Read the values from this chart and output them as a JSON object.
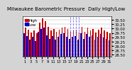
{
  "title": "Milwaukee Barometric Pressure  Daily High/Low",
  "ylabel_right_values": [
    "30.50",
    "30.25",
    "30.00",
    "29.75",
    "29.50",
    "29.25",
    "29.00",
    "28.75",
    "28.50"
  ],
  "ylim": [
    28.4,
    30.7
  ],
  "bar_width": 0.42,
  "high_color": "#cc0000",
  "low_color": "#0000cc",
  "background_color": "#d4d4d4",
  "plot_bg_color": "#ffffff",
  "days": [
    1,
    2,
    3,
    4,
    5,
    6,
    7,
    8,
    9,
    10,
    11,
    12,
    13,
    14,
    15,
    16,
    17,
    18,
    19,
    20,
    21,
    22,
    23,
    24,
    25,
    26,
    27,
    28,
    29,
    30,
    31
  ],
  "high_values": [
    30.05,
    29.92,
    29.78,
    29.88,
    29.72,
    30.35,
    30.58,
    30.42,
    30.12,
    29.88,
    29.98,
    29.82,
    29.95,
    30.08,
    30.12,
    29.98,
    29.82,
    29.88,
    29.95,
    29.78,
    30.12,
    29.82,
    30.08,
    29.88,
    29.98,
    29.78,
    29.95,
    30.08,
    29.88,
    29.82,
    29.72
  ],
  "low_values": [
    29.72,
    29.58,
    29.38,
    29.52,
    29.28,
    29.82,
    29.98,
    30.08,
    29.62,
    29.42,
    29.58,
    29.38,
    29.52,
    29.68,
    29.72,
    29.52,
    29.42,
    29.52,
    29.58,
    29.38,
    29.72,
    29.42,
    29.68,
    29.52,
    29.62,
    29.38,
    29.52,
    29.68,
    29.48,
    29.42,
    29.32
  ],
  "legend_high": "High",
  "legend_low": "Low",
  "dashed_indices": [
    16,
    17,
    18,
    19
  ],
  "title_fontsize": 5.0,
  "tick_fontsize": 3.8,
  "legend_fontsize": 3.8
}
